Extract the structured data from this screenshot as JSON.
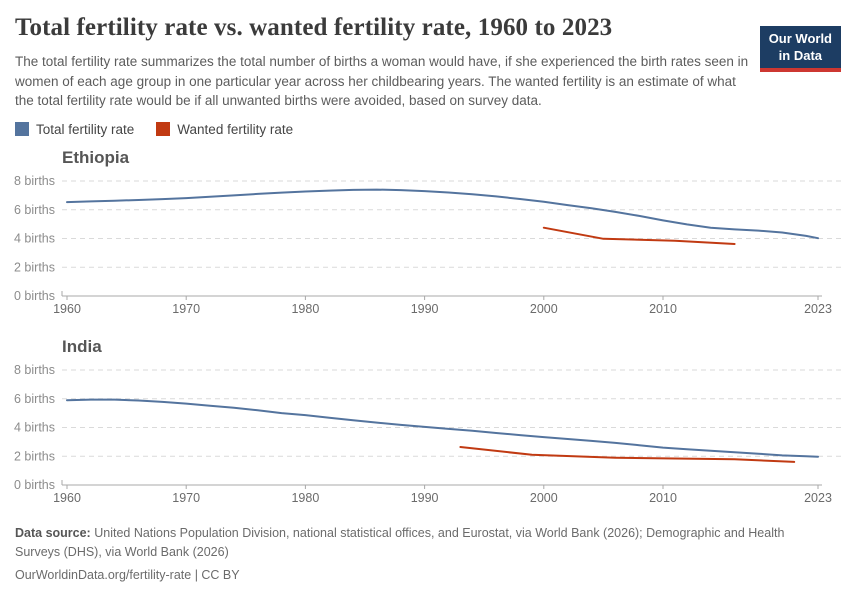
{
  "header": {
    "title": "Total fertility rate vs. wanted fertility rate, 1960 to 2023",
    "subtitle": "The total fertility rate summarizes the total number of births a woman would have, if she experienced the birth rates seen in women of each age group in one particular year across her childbearing years. The wanted fertility is an estimate of what the total fertility rate would be if all unwanted births were avoided, based on survey data.",
    "logo": {
      "line1": "Our World",
      "line2": "in Data",
      "bg_color": "#1d3d63",
      "bar_color": "#cd3731"
    }
  },
  "legend": [
    {
      "label": "Total fertility rate",
      "color": "#54749e"
    },
    {
      "label": "Wanted fertility rate",
      "color": "#c13a12"
    }
  ],
  "footer": {
    "source_label": "Data source:",
    "source_text": "United Nations Population Division, national statistical offices, and Eurostat, via World Bank (2026); Demographic and Health Surveys (DHS), via World Bank (2026)",
    "license_text": "OurWorldinData.org/fertility-rate | CC BY"
  },
  "chart_data": [
    {
      "type": "line",
      "title": "Ethiopia",
      "xlabel": "",
      "ylabel": "births",
      "xlim": [
        1960,
        2023
      ],
      "ylim": [
        0,
        8
      ],
      "x_ticks": [
        1960,
        1970,
        1980,
        1990,
        2000,
        2010,
        2023
      ],
      "y_ticks": [
        0,
        2,
        4,
        6,
        8
      ],
      "y_tick_suffix": " births",
      "grid": "dashed-horizontal",
      "legend_position": "top-shared",
      "series": [
        {
          "name": "Total fertility rate",
          "color": "#54749e",
          "points": [
            [
              1960,
              6.53
            ],
            [
              1962,
              6.58
            ],
            [
              1964,
              6.63
            ],
            [
              1966,
              6.68
            ],
            [
              1968,
              6.74
            ],
            [
              1970,
              6.81
            ],
            [
              1972,
              6.9
            ],
            [
              1974,
              7.0
            ],
            [
              1976,
              7.1
            ],
            [
              1978,
              7.19
            ],
            [
              1980,
              7.27
            ],
            [
              1982,
              7.33
            ],
            [
              1984,
              7.38
            ],
            [
              1986,
              7.4
            ],
            [
              1988,
              7.37
            ],
            [
              1990,
              7.3
            ],
            [
              1992,
              7.2
            ],
            [
              1994,
              7.08
            ],
            [
              1996,
              6.93
            ],
            [
              1998,
              6.75
            ],
            [
              2000,
              6.55
            ],
            [
              2002,
              6.32
            ],
            [
              2004,
              6.1
            ],
            [
              2006,
              5.85
            ],
            [
              2008,
              5.57
            ],
            [
              2010,
              5.26
            ],
            [
              2012,
              4.98
            ],
            [
              2014,
              4.75
            ],
            [
              2016,
              4.63
            ],
            [
              2018,
              4.55
            ],
            [
              2020,
              4.42
            ],
            [
              2022,
              4.18
            ],
            [
              2023,
              4.02
            ]
          ]
        },
        {
          "name": "Wanted fertility rate",
          "color": "#c13a12",
          "points": [
            [
              2000,
              4.75
            ],
            [
              2005,
              3.98
            ],
            [
              2011,
              3.85
            ],
            [
              2016,
              3.62
            ]
          ]
        }
      ]
    },
    {
      "type": "line",
      "title": "India",
      "xlabel": "",
      "ylabel": "births",
      "xlim": [
        1960,
        2023
      ],
      "ylim": [
        0,
        8
      ],
      "x_ticks": [
        1960,
        1970,
        1980,
        1990,
        2000,
        2010,
        2023
      ],
      "y_ticks": [
        0,
        2,
        4,
        6,
        8
      ],
      "y_tick_suffix": " births",
      "grid": "dashed-horizontal",
      "legend_position": "top-shared",
      "series": [
        {
          "name": "Total fertility rate",
          "color": "#54749e",
          "points": [
            [
              1960,
              5.9
            ],
            [
              1962,
              5.94
            ],
            [
              1964,
              5.94
            ],
            [
              1966,
              5.88
            ],
            [
              1968,
              5.78
            ],
            [
              1970,
              5.66
            ],
            [
              1972,
              5.52
            ],
            [
              1974,
              5.37
            ],
            [
              1976,
              5.2
            ],
            [
              1978,
              5.0
            ],
            [
              1980,
              4.86
            ],
            [
              1982,
              4.68
            ],
            [
              1984,
              4.5
            ],
            [
              1986,
              4.34
            ],
            [
              1988,
              4.18
            ],
            [
              1990,
              4.04
            ],
            [
              1992,
              3.9
            ],
            [
              1994,
              3.77
            ],
            [
              1996,
              3.62
            ],
            [
              1998,
              3.47
            ],
            [
              2000,
              3.33
            ],
            [
              2002,
              3.2
            ],
            [
              2004,
              3.07
            ],
            [
              2006,
              2.93
            ],
            [
              2008,
              2.77
            ],
            [
              2010,
              2.6
            ],
            [
              2012,
              2.48
            ],
            [
              2014,
              2.38
            ],
            [
              2016,
              2.28
            ],
            [
              2018,
              2.18
            ],
            [
              2020,
              2.06
            ],
            [
              2022,
              2.0
            ],
            [
              2023,
              1.97
            ]
          ]
        },
        {
          "name": "Wanted fertility rate",
          "color": "#c13a12",
          "points": [
            [
              1993,
              2.64
            ],
            [
              1999,
              2.1
            ],
            [
              2006,
              1.9
            ],
            [
              2016,
              1.79
            ],
            [
              2021,
              1.61
            ]
          ]
        }
      ]
    }
  ]
}
